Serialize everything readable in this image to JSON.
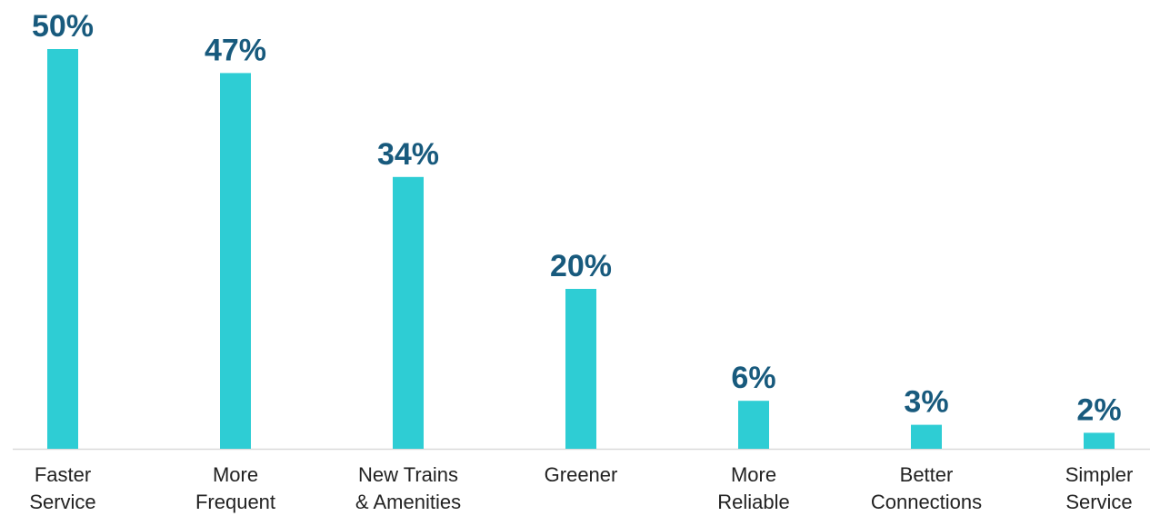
{
  "colors": {
    "bar": "#2ecdd4",
    "value_label": "#185a7d",
    "category_label": "#222222",
    "baseline": "#d9d9d9"
  },
  "chart_data": {
    "type": "bar",
    "categories": [
      [
        "Faster",
        "Service"
      ],
      [
        "More",
        "Frequent"
      ],
      [
        "New Trains",
        "& Amenities"
      ],
      [
        "Greener"
      ],
      [
        "More",
        "Reliable"
      ],
      [
        "Better",
        "Connections"
      ],
      [
        "Simpler",
        "Service"
      ]
    ],
    "values": [
      50,
      47,
      34,
      20,
      6,
      3,
      2
    ],
    "value_labels": [
      "50%",
      "47%",
      "34%",
      "20%",
      "6%",
      "3%",
      "2%"
    ],
    "unit": "%",
    "ylim": [
      0,
      50
    ],
    "grid": false,
    "legend": "none"
  }
}
